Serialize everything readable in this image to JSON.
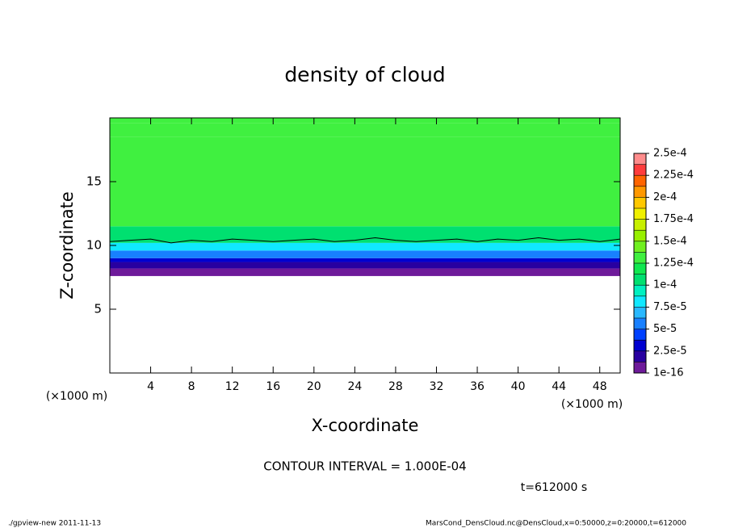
{
  "chart_data": {
    "type": "contour",
    "title": "density of cloud",
    "xlabel": "X-coordinate",
    "ylabel": "Z-coordinate",
    "x_unit_labels": [
      "(×1000 m)",
      "(×1000 m)"
    ],
    "xlim": [
      0,
      50
    ],
    "ylim": [
      0,
      20
    ],
    "xticks": [
      4,
      8,
      12,
      16,
      20,
      24,
      28,
      32,
      36,
      40,
      44,
      48
    ],
    "yticks": [
      5,
      10,
      15
    ],
    "layers": {
      "z": [
        0,
        7.6,
        8.2,
        8.7,
        9.0,
        9.6,
        10.2,
        11.5,
        18.5,
        19.6
      ],
      "values": [
        0,
        5e-06,
        2e-05,
        3.5e-05,
        5.5e-05,
        8e-05,
        0.000105,
        0.00013,
        0.000135,
        0.00013
      ]
    },
    "contour_line": {
      "x": [
        0,
        2,
        4,
        6,
        8,
        10,
        12,
        14,
        16,
        18,
        20,
        22,
        24,
        26,
        28,
        30,
        32,
        34,
        36,
        38,
        40,
        42,
        44,
        46,
        48,
        50
      ],
      "z": [
        10.3,
        10.4,
        10.5,
        10.2,
        10.4,
        10.3,
        10.5,
        10.4,
        10.3,
        10.4,
        10.5,
        10.3,
        10.4,
        10.6,
        10.4,
        10.3,
        10.4,
        10.5,
        10.3,
        10.5,
        10.4,
        10.6,
        10.4,
        10.5,
        10.3,
        10.5
      ],
      "color": "#000000"
    },
    "colorbar": {
      "levels": [
        1e-16,
        1.25e-05,
        2.5e-05,
        3.75e-05,
        5e-05,
        6.25e-05,
        7.5e-05,
        8.75e-05,
        0.0001,
        0.0001125,
        0.000125,
        0.0001375,
        0.00015,
        0.0001625,
        0.000175,
        0.0001875,
        0.0002,
        0.0002125,
        0.000225,
        0.0002375,
        0.00025
      ],
      "colors": [
        "#6e1a9a",
        "#2800a0",
        "#0000d0",
        "#0040ff",
        "#1880ff",
        "#28b8ff",
        "#10e8ff",
        "#00f0c0",
        "#00e070",
        "#10e850",
        "#40f040",
        "#70f020",
        "#98f000",
        "#c8f000",
        "#f0f000",
        "#ffc800",
        "#ff9800",
        "#ff6400",
        "#ff3c3c",
        "#ff8c8c"
      ],
      "ticks": [
        1e-16,
        {
          "value": 2.5e-05,
          "label": "2.5e-5"
        },
        {
          "value": 5e-05,
          "label": "5e-5"
        },
        {
          "value": 7.5e-05,
          "label": "7.5e-5"
        },
        {
          "value": 0.0001,
          "label": "1e-4"
        },
        {
          "value": 0.000125,
          "label": "1.25e-4"
        },
        {
          "value": 0.00015,
          "label": "1.5e-4"
        },
        {
          "value": 0.000175,
          "label": "1.75e-4"
        },
        {
          "value": 0.0002,
          "label": "2e-4"
        },
        {
          "value": 0.000225,
          "label": "2.25e-4"
        },
        {
          "value": 0.00025,
          "label": "2.5e-4"
        }
      ]
    },
    "contour_interval_label": "CONTOUR INTERVAL = 1.000E-04",
    "time_label": "t=612000 s",
    "footer_left": "./gpview-new  2011-11-13",
    "footer_right": "MarsCond_DensCloud.nc@DensCloud,x=0:50000,z=0:20000,t=612000"
  }
}
